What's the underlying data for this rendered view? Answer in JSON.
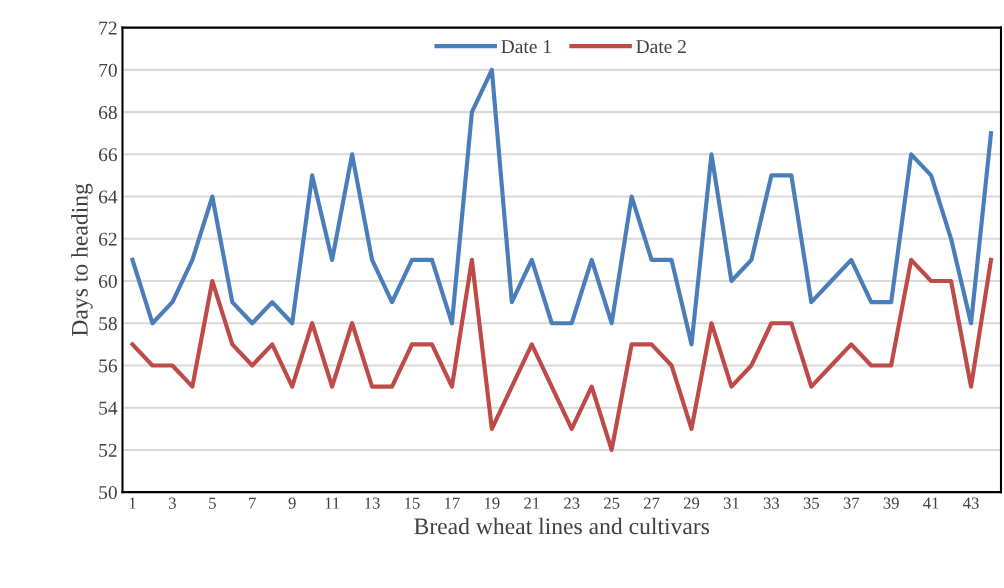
{
  "chart_data": {
    "type": "line",
    "xlabel": "Bread wheat lines and cultivars",
    "ylabel": "Days to heading",
    "categories": [
      "1",
      null,
      "3",
      null,
      "5",
      null,
      "7",
      null,
      "9",
      null,
      "11",
      null,
      "13",
      null,
      "15",
      null,
      "17",
      null,
      "19",
      null,
      "21",
      null,
      "23",
      null,
      "25",
      null,
      "27",
      null,
      "29",
      null,
      "31",
      null,
      "33",
      null,
      "35",
      null,
      "37",
      null,
      "39",
      null,
      "41",
      null,
      "43",
      null
    ],
    "series": [
      {
        "name": "Date 1",
        "color": "#4a7ebb",
        "values": [
          61,
          58,
          59,
          61,
          64,
          59,
          58,
          59,
          58,
          65,
          61,
          66,
          61,
          59,
          61,
          61,
          58,
          68,
          70,
          59,
          61,
          58,
          58,
          61,
          58,
          64,
          61,
          61,
          57,
          66,
          60,
          61,
          65,
          65,
          59,
          60,
          61,
          59,
          59,
          66,
          65,
          62,
          58,
          67
        ]
      },
      {
        "name": "Date 2",
        "color": "#be4b48",
        "values": [
          57,
          56,
          56,
          55,
          60,
          57,
          56,
          57,
          55,
          58,
          55,
          58,
          55,
          55,
          57,
          57,
          55,
          61,
          53,
          55,
          57,
          55,
          53,
          55,
          52,
          57,
          57,
          56,
          53,
          58,
          55,
          56,
          58,
          58,
          55,
          56,
          57,
          56,
          56,
          61,
          60,
          60,
          55,
          61
        ]
      }
    ],
    "ylim": [
      50,
      72
    ],
    "yticks": [
      50,
      52,
      54,
      56,
      58,
      60,
      62,
      64,
      66,
      68,
      70,
      72
    ],
    "grid": "y",
    "legend": "top",
    "marker": "none",
    "line_style": "solid"
  }
}
